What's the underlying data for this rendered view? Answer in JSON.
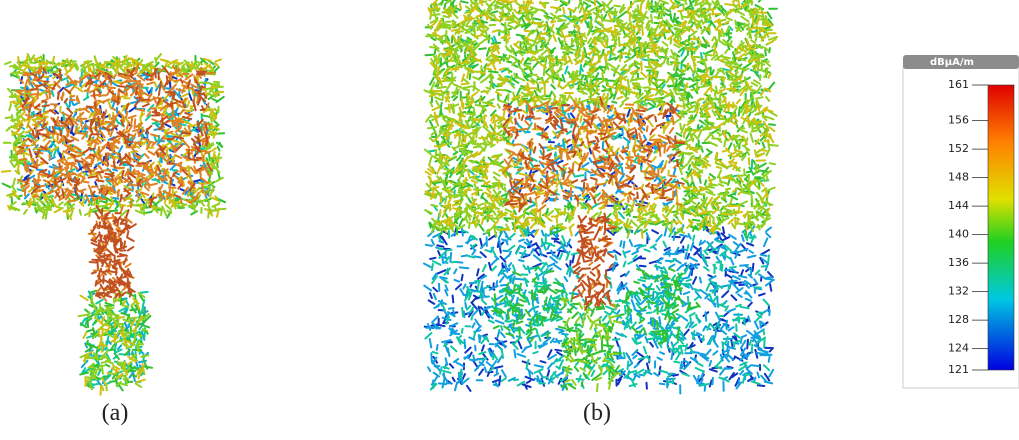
{
  "panels": [
    {
      "caption": "(a)"
    },
    {
      "caption": "(b)"
    }
  ],
  "colorbar": {
    "unit": "dBµA/m",
    "ticks": [
      161,
      156,
      152,
      148,
      144,
      140,
      136,
      132,
      128,
      124,
      121
    ]
  }
}
